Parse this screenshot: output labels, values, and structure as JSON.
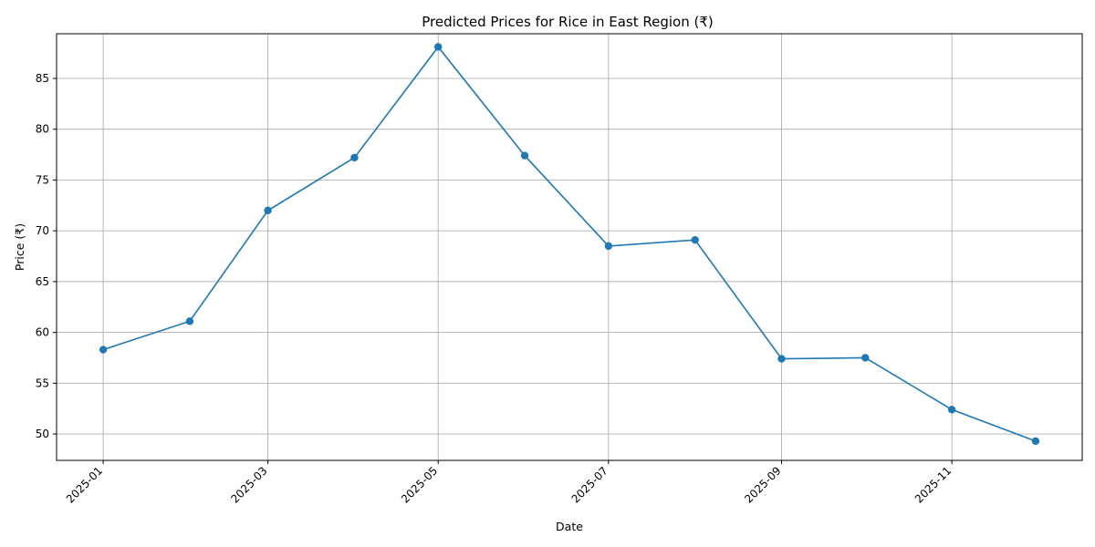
{
  "chart_data": {
    "type": "line",
    "title": "Predicted Prices for Rice in East Region (₹)",
    "xlabel": "Date",
    "ylabel": "Price (₹)",
    "x_ticks": [
      "2025-01",
      "2025-03",
      "2025-05",
      "2025-07",
      "2025-09",
      "2025-11"
    ],
    "y_ticks": [
      50,
      55,
      60,
      65,
      70,
      75,
      80,
      85
    ],
    "ylim": [
      47.4,
      89.4
    ],
    "grid": true,
    "color": "#1f77b4",
    "series": [
      {
        "marker": "circle",
        "x": [
          "2025-01-01",
          "2025-02-01",
          "2025-03-01",
          "2025-04-01",
          "2025-05-01",
          "2025-06-01",
          "2025-07-01",
          "2025-08-01",
          "2025-09-01",
          "2025-10-01",
          "2025-11-01",
          "2025-12-01"
        ],
        "values": [
          58.3,
          61.1,
          72.0,
          77.2,
          88.1,
          77.4,
          68.5,
          69.1,
          57.4,
          57.5,
          52.4,
          49.3
        ]
      }
    ]
  }
}
